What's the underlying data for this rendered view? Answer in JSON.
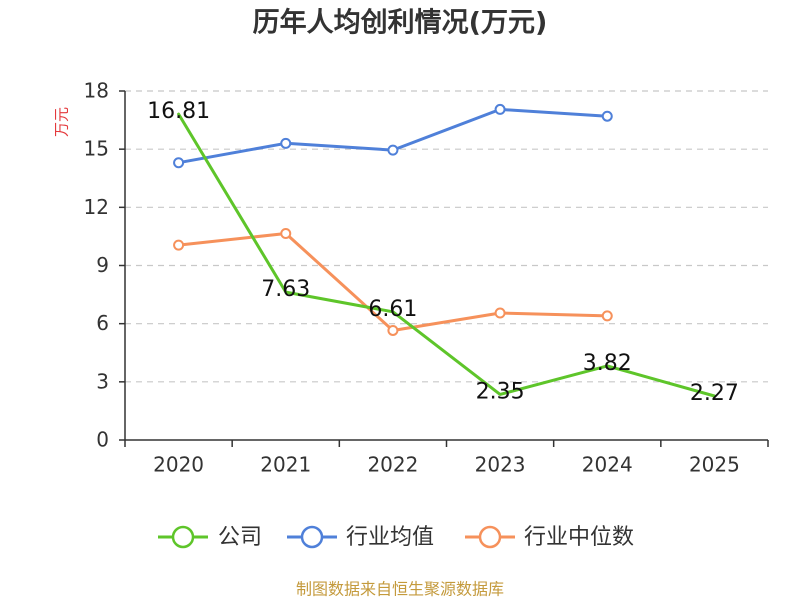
{
  "chart_data": {
    "type": "line",
    "title": "历年人均创利情况(万元)",
    "xlabel": "",
    "ylabel": "万元",
    "ylabel_color": "#e4393c",
    "categories": [
      "2020",
      "2021",
      "2022",
      "2023",
      "2024",
      "2025"
    ],
    "ylim": [
      0,
      18
    ],
    "yticks": [
      0,
      3,
      6,
      9,
      12,
      15,
      18
    ],
    "grid": true,
    "legend_position": "bottom",
    "series": [
      {
        "name": "公司",
        "color": "#5ec52a",
        "markers": false,
        "values": [
          16.81,
          7.63,
          6.61,
          2.35,
          3.82,
          2.27
        ],
        "labels": [
          "16.81",
          "7.63",
          "6.61",
          "2.35",
          "3.82",
          "2.27"
        ]
      },
      {
        "name": "行业均值",
        "color": "#4f80d9",
        "markers": true,
        "values": [
          14.3,
          15.3,
          14.95,
          17.05,
          16.7,
          null
        ]
      },
      {
        "name": "行业中位数",
        "color": "#f6915b",
        "markers": true,
        "values": [
          10.05,
          10.65,
          5.65,
          6.55,
          6.4,
          null
        ]
      }
    ]
  },
  "footer": {
    "source": "制图数据来自恒生聚源数据库",
    "color": "#c49a3c"
  }
}
